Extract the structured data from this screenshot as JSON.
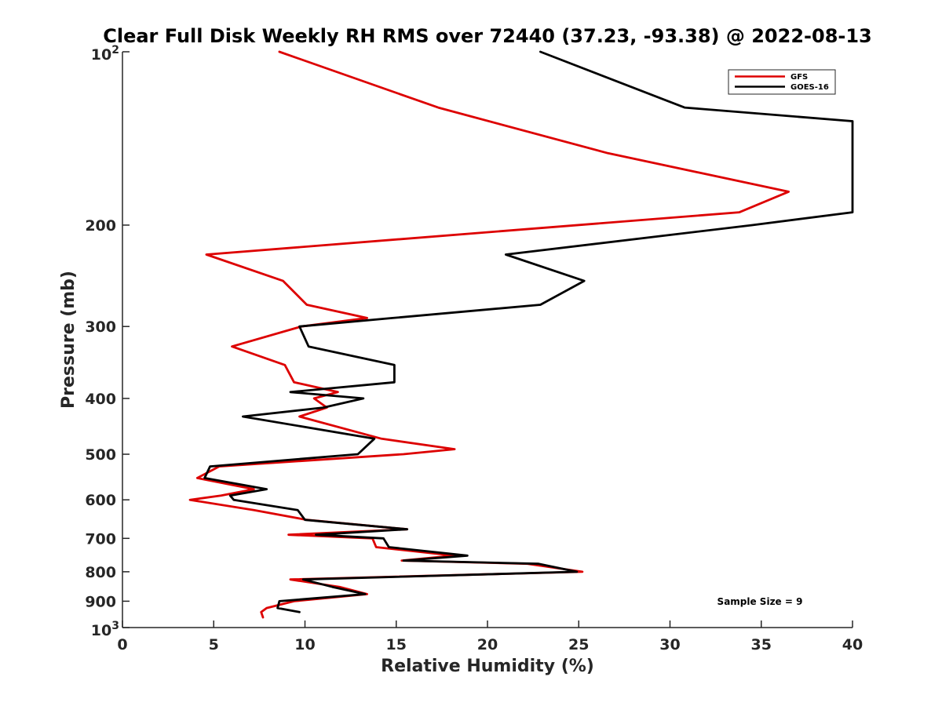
{
  "chart_data": {
    "type": "line",
    "title": "Clear Full Disk Weekly RH RMS over 72440 (37.23, -93.38) @ 2022-08-13",
    "xlabel": "Relative Humidity (%)",
    "ylabel": "Pressure (mb)",
    "xlim": [
      0,
      40
    ],
    "ylim": [
      100,
      1000
    ],
    "y_scale": "log",
    "y_reversed": true,
    "x_ticks": [
      "0",
      "5",
      "10",
      "15",
      "20",
      "25",
      "30",
      "35",
      "40"
    ],
    "y_ticks": [
      {
        "value": 100,
        "label": "10",
        "sup": "2"
      },
      {
        "value": 200,
        "label": "200",
        "sup": ""
      },
      {
        "value": 300,
        "label": "300",
        "sup": ""
      },
      {
        "value": 400,
        "label": "400",
        "sup": ""
      },
      {
        "value": 500,
        "label": "500",
        "sup": ""
      },
      {
        "value": 600,
        "label": "600",
        "sup": ""
      },
      {
        "value": 700,
        "label": "700",
        "sup": ""
      },
      {
        "value": 800,
        "label": "800",
        "sup": ""
      },
      {
        "value": 900,
        "label": "900",
        "sup": ""
      },
      {
        "value": 1000,
        "label": "10",
        "sup": "3"
      }
    ],
    "grid": false,
    "legend_position": "top-right",
    "annotation": "Sample Size = 9",
    "series": [
      {
        "name": "GFS",
        "color": "#dd0000",
        "points": [
          [
            8.6,
            100
          ],
          [
            17.3,
            125
          ],
          [
            26.6,
            150
          ],
          [
            36.5,
            175
          ],
          [
            33.8,
            190
          ],
          [
            4.6,
            225
          ],
          [
            8.8,
            250
          ],
          [
            10.1,
            275
          ],
          [
            13.4,
            290
          ],
          [
            9.8,
            300
          ],
          [
            6.0,
            325
          ],
          [
            8.9,
            350
          ],
          [
            9.4,
            375
          ],
          [
            11.8,
            390
          ],
          [
            10.5,
            400
          ],
          [
            11.2,
            415
          ],
          [
            9.7,
            430
          ],
          [
            14.2,
            470
          ],
          [
            18.2,
            490
          ],
          [
            15.4,
            500
          ],
          [
            5.3,
            525
          ],
          [
            4.1,
            550
          ],
          [
            7.2,
            575
          ],
          [
            5.4,
            590
          ],
          [
            3.7,
            600
          ],
          [
            7.2,
            625
          ],
          [
            10.1,
            650
          ],
          [
            15.6,
            675
          ],
          [
            9.1,
            690
          ],
          [
            13.7,
            700
          ],
          [
            13.9,
            725
          ],
          [
            18.2,
            750
          ],
          [
            15.3,
            765
          ],
          [
            22.2,
            775
          ],
          [
            25.2,
            800
          ],
          [
            9.2,
            825
          ],
          [
            11.9,
            850
          ],
          [
            13.4,
            875
          ],
          [
            9.4,
            900
          ],
          [
            7.9,
            925
          ],
          [
            7.6,
            940
          ],
          [
            7.7,
            960
          ]
        ]
      },
      {
        "name": "GOES-16",
        "color": "#000000",
        "points": [
          [
            22.9,
            100
          ],
          [
            30.8,
            125
          ],
          [
            40.0,
            132
          ],
          [
            40.0,
            190
          ],
          [
            34.5,
            200
          ],
          [
            21.0,
            225
          ],
          [
            25.3,
            250
          ],
          [
            22.9,
            275
          ],
          [
            14.8,
            290
          ],
          [
            9.7,
            300
          ],
          [
            10.2,
            325
          ],
          [
            14.9,
            350
          ],
          [
            14.9,
            375
          ],
          [
            9.2,
            390
          ],
          [
            13.2,
            400
          ],
          [
            11.0,
            415
          ],
          [
            6.6,
            430
          ],
          [
            13.8,
            470
          ],
          [
            12.9,
            500
          ],
          [
            4.8,
            525
          ],
          [
            4.5,
            550
          ],
          [
            7.9,
            575
          ],
          [
            5.9,
            590
          ],
          [
            6.1,
            600
          ],
          [
            9.6,
            625
          ],
          [
            10.0,
            650
          ],
          [
            15.6,
            675
          ],
          [
            10.6,
            690
          ],
          [
            14.3,
            700
          ],
          [
            14.6,
            725
          ],
          [
            18.9,
            750
          ],
          [
            15.4,
            765
          ],
          [
            22.8,
            775
          ],
          [
            24.9,
            800
          ],
          [
            9.9,
            825
          ],
          [
            11.5,
            850
          ],
          [
            13.3,
            875
          ],
          [
            8.6,
            900
          ],
          [
            8.5,
            925
          ],
          [
            9.7,
            940
          ]
        ]
      }
    ]
  }
}
